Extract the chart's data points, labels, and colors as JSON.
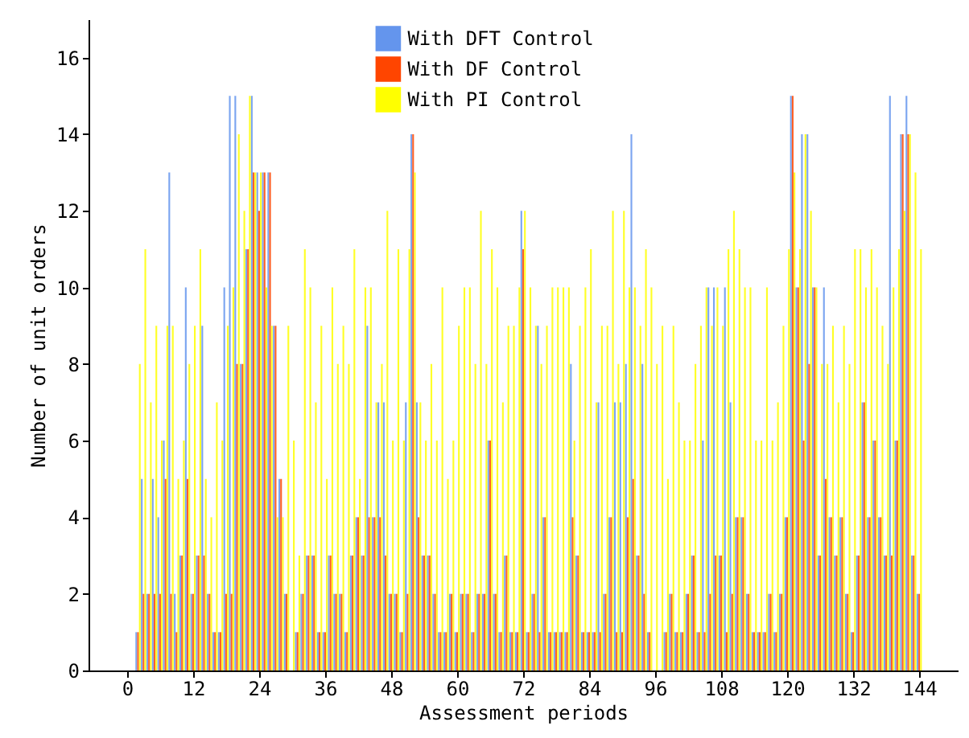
{
  "chart_data": {
    "type": "bar",
    "xlabel": "Assessment periods",
    "ylabel": "Number of unit orders",
    "x": [
      1,
      2,
      3,
      4,
      5,
      6,
      7,
      8,
      9,
      10,
      11,
      12,
      13,
      14,
      15,
      16,
      17,
      18,
      19,
      20,
      21,
      22,
      23,
      24,
      25,
      26,
      27,
      28,
      29,
      30,
      31,
      32,
      33,
      34,
      35,
      36,
      37,
      38,
      39,
      40,
      41,
      42,
      43,
      44,
      45,
      46,
      47,
      48,
      49,
      50,
      51,
      52,
      53,
      54,
      55,
      56,
      57,
      58,
      59,
      60,
      61,
      62,
      63,
      64,
      65,
      66,
      67,
      68,
      69,
      70,
      71,
      72,
      73,
      74,
      75,
      76,
      77,
      78,
      79,
      80,
      81,
      82,
      83,
      84,
      85,
      86,
      87,
      88,
      89,
      90,
      91,
      92,
      93,
      94,
      95,
      96,
      97,
      98,
      99,
      100,
      101,
      102,
      103,
      104,
      105,
      106,
      107,
      108,
      109,
      110,
      111,
      112,
      113,
      114,
      115,
      116,
      117,
      118,
      119,
      120,
      121,
      122,
      123,
      124,
      125,
      126,
      127,
      128,
      129,
      130,
      131,
      132,
      133,
      134,
      135,
      136,
      137,
      138,
      139,
      140,
      141,
      142,
      143,
      144
    ],
    "series": [
      {
        "name": "With DFT Control",
        "color": "#6495ed",
        "values": [
          0,
          1,
          5,
          2,
          5,
          4,
          6,
          13,
          2,
          3,
          10,
          2,
          3,
          9,
          2,
          1,
          1,
          10,
          15,
          15,
          8,
          11,
          15,
          13,
          13,
          13,
          9,
          5,
          2,
          0,
          1,
          2,
          3,
          3,
          1,
          1,
          3,
          2,
          2,
          1,
          3,
          4,
          3,
          9,
          4,
          7,
          7,
          2,
          2,
          1,
          7,
          14,
          7,
          3,
          3,
          2,
          1,
          1,
          2,
          1,
          2,
          2,
          1,
          2,
          2,
          6,
          2,
          1,
          3,
          1,
          1,
          12,
          1,
          2,
          9,
          4,
          1,
          1,
          1,
          1,
          8,
          3,
          1,
          1,
          1,
          7,
          2,
          4,
          7,
          7,
          8,
          14,
          3,
          8,
          1,
          0,
          0,
          1,
          2,
          1,
          1,
          2,
          3,
          1,
          6,
          10,
          10,
          3,
          10,
          7,
          4,
          4,
          2,
          1,
          1,
          1,
          2,
          1,
          2,
          4,
          15,
          10,
          14,
          14,
          10,
          3,
          10,
          4,
          3,
          4,
          2,
          1,
          3,
          7,
          4,
          6,
          4,
          3,
          15,
          6,
          14,
          15,
          3,
          2
        ]
      },
      {
        "name": "With DF Control",
        "color": "#ff4500",
        "values": [
          0,
          1,
          2,
          2,
          2,
          2,
          5,
          2,
          1,
          3,
          5,
          2,
          3,
          3,
          2,
          1,
          1,
          2,
          2,
          8,
          8,
          11,
          13,
          12,
          13,
          13,
          9,
          5,
          2,
          0,
          1,
          2,
          3,
          3,
          1,
          1,
          3,
          2,
          2,
          1,
          3,
          4,
          3,
          4,
          4,
          4,
          3,
          2,
          2,
          1,
          2,
          14,
          4,
          3,
          3,
          2,
          1,
          1,
          2,
          1,
          2,
          2,
          1,
          2,
          2,
          6,
          2,
          1,
          3,
          1,
          1,
          11,
          1,
          2,
          1,
          4,
          1,
          1,
          1,
          1,
          4,
          3,
          1,
          1,
          1,
          1,
          2,
          4,
          1,
          1,
          4,
          5,
          3,
          2,
          1,
          0,
          0,
          1,
          2,
          1,
          1,
          2,
          3,
          1,
          1,
          2,
          3,
          3,
          1,
          2,
          4,
          4,
          2,
          1,
          1,
          1,
          2,
          1,
          2,
          4,
          15,
          10,
          6,
          8,
          10,
          3,
          5,
          4,
          3,
          4,
          2,
          1,
          3,
          7,
          4,
          6,
          4,
          3,
          3,
          6,
          14,
          14,
          3,
          2
        ]
      },
      {
        "name": "With PI Control",
        "color": "#ffff00",
        "values": [
          0,
          8,
          11,
          7,
          9,
          6,
          9,
          9,
          5,
          6,
          8,
          9,
          11,
          5,
          4,
          7,
          6,
          9,
          10,
          14,
          12,
          15,
          13,
          13,
          10,
          9,
          4,
          4,
          9,
          6,
          3,
          11,
          10,
          7,
          9,
          5,
          10,
          8,
          9,
          8,
          11,
          5,
          10,
          10,
          7,
          8,
          12,
          6,
          11,
          6,
          11,
          13,
          7,
          6,
          8,
          6,
          10,
          5,
          6,
          9,
          10,
          10,
          8,
          12,
          8,
          11,
          10,
          7,
          9,
          9,
          10,
          12,
          10,
          9,
          8,
          9,
          10,
          10,
          10,
          10,
          6,
          9,
          10,
          11,
          7,
          9,
          9,
          12,
          8,
          12,
          10,
          10,
          9,
          11,
          10,
          8,
          9,
          5,
          9,
          7,
          6,
          6,
          8,
          9,
          10,
          9,
          10,
          9,
          11,
          12,
          11,
          10,
          10,
          6,
          6,
          10,
          6,
          7,
          9,
          11,
          13,
          11,
          14,
          12,
          10,
          8,
          8,
          9,
          7,
          9,
          8,
          11,
          11,
          10,
          11,
          10,
          9,
          8,
          10,
          11,
          12,
          14,
          13,
          11
        ]
      }
    ],
    "xlim": [
      -7,
      151
    ],
    "xticks": [
      0,
      12,
      24,
      36,
      48,
      60,
      72,
      84,
      96,
      108,
      120,
      132,
      144
    ],
    "ylim": [
      0,
      17
    ],
    "yticks": [
      0,
      2,
      4,
      6,
      8,
      10,
      12,
      14,
      16
    ],
    "legend": "top",
    "grid": false
  }
}
